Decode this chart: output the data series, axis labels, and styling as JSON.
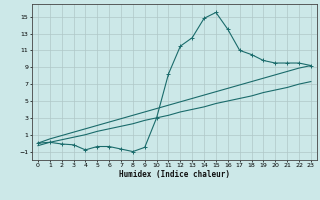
{
  "title": "",
  "xlabel": "Humidex (Indice chaleur)",
  "bg_color": "#cce8e8",
  "grid_color": "#b0c8c8",
  "line_color": "#1a6b6b",
  "xlim": [
    -0.5,
    23.5
  ],
  "ylim": [
    -2.0,
    16.5
  ],
  "xticks": [
    0,
    1,
    2,
    3,
    4,
    5,
    6,
    7,
    8,
    9,
    10,
    11,
    12,
    13,
    14,
    15,
    16,
    17,
    18,
    19,
    20,
    21,
    22,
    23
  ],
  "yticks": [
    -1,
    1,
    3,
    5,
    7,
    9,
    11,
    13,
    15
  ],
  "line1_x": [
    0,
    1,
    2,
    3,
    4,
    5,
    6,
    7,
    8,
    9,
    10,
    11,
    12,
    13,
    14,
    15,
    16,
    17,
    18,
    19,
    20,
    21,
    22,
    23
  ],
  "line1_y": [
    -0.3,
    0.1,
    0.4,
    0.7,
    1.0,
    1.4,
    1.7,
    2.0,
    2.3,
    2.7,
    3.0,
    3.3,
    3.7,
    4.0,
    4.3,
    4.7,
    5.0,
    5.3,
    5.6,
    6.0,
    6.3,
    6.6,
    7.0,
    7.3
  ],
  "line2_x": [
    0,
    1,
    2,
    3,
    4,
    5,
    6,
    7,
    8,
    9,
    10,
    11,
    12,
    13,
    14,
    15,
    16,
    17,
    18,
    19,
    20,
    21,
    22,
    23
  ],
  "line2_y": [
    0.0,
    0.5,
    0.9,
    1.3,
    1.7,
    2.1,
    2.5,
    2.9,
    3.3,
    3.7,
    4.1,
    4.5,
    4.9,
    5.3,
    5.7,
    6.1,
    6.5,
    6.9,
    7.3,
    7.7,
    8.1,
    8.5,
    8.9,
    9.2
  ],
  "line3_x": [
    0,
    1,
    2,
    3,
    4,
    5,
    6,
    7,
    8,
    9,
    10,
    11,
    12,
    13,
    14,
    15,
    16,
    17,
    18,
    19,
    20,
    21,
    22,
    23
  ],
  "line3_y": [
    0.0,
    0.1,
    -0.1,
    -0.2,
    -0.8,
    -0.4,
    -0.4,
    -0.7,
    -1.0,
    -0.5,
    3.0,
    8.2,
    11.5,
    12.5,
    14.8,
    15.5,
    13.5,
    11.0,
    10.5,
    9.8,
    9.5,
    9.5,
    9.5,
    9.2
  ]
}
